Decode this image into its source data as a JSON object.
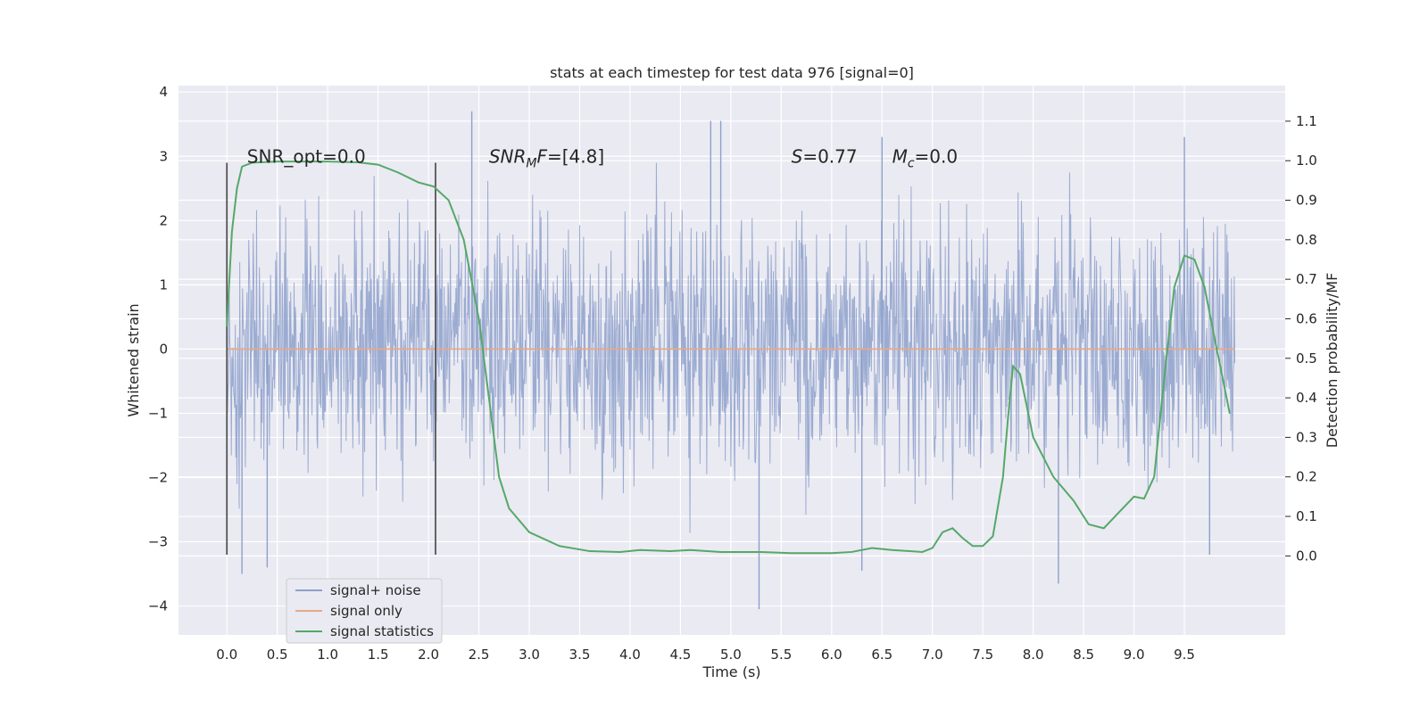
{
  "chart_data": {
    "type": "line",
    "title": "stats at each timestep for test data 976 [signal=0]",
    "xlabel": "Time (s)",
    "ylabel": "Whitened strain",
    "ylabel_right": "Detection probability/MF",
    "xlim": [
      -0.48,
      10.5
    ],
    "ylim": [
      -4.45,
      4.1
    ],
    "ylim_right": [
      -0.2,
      1.19
    ],
    "x_ticks": [
      0.0,
      0.5,
      1.0,
      1.5,
      2.0,
      2.5,
      3.0,
      3.5,
      4.0,
      4.5,
      5.0,
      5.5,
      6.0,
      6.5,
      7.0,
      7.5,
      8.0,
      8.5,
      9.0,
      9.5
    ],
    "x_tick_labels": [
      "0.0",
      "0.5",
      "1.0",
      "1.5",
      "2.0",
      "2.5",
      "3.0",
      "3.5",
      "4.0",
      "4.5",
      "5.0",
      "5.5",
      "6.0",
      "6.5",
      "7.0",
      "7.5",
      "8.0",
      "8.5",
      "9.0",
      "9.5"
    ],
    "y_ticks": [
      -4,
      -3,
      -2,
      -1,
      0,
      1,
      2,
      3,
      4
    ],
    "y_tick_labels": [
      "−4",
      "−3",
      "−2",
      "−1",
      "0",
      "1",
      "2",
      "3",
      "4"
    ],
    "y_right_ticks": [
      0.0,
      0.1,
      0.2,
      0.3,
      0.4,
      0.5,
      0.6,
      0.7,
      0.8,
      0.9,
      1.0,
      1.1
    ],
    "y_right_tick_labels": [
      "0.0",
      "0.1",
      "0.2",
      "0.3",
      "0.4",
      "0.5",
      "0.6",
      "0.7",
      "0.8",
      "0.9",
      "1.0",
      "1.1"
    ],
    "grid": true,
    "legend_position": "lower-left",
    "series": [
      {
        "name": "signal+ noise",
        "color": "#8da0cb",
        "x_range": [
          0.0,
          10.0
        ],
        "typical_envelope": [
          -2.3,
          2.4
        ],
        "extremes": [
          {
            "x": 0.15,
            "y": -3.5
          },
          {
            "x": 0.4,
            "y": -3.4
          },
          {
            "x": 2.43,
            "y": 3.7
          },
          {
            "x": 4.8,
            "y": 3.55
          },
          {
            "x": 4.9,
            "y": 3.55
          },
          {
            "x": 5.28,
            "y": -4.05
          },
          {
            "x": 6.3,
            "y": -3.45
          },
          {
            "x": 6.5,
            "y": 3.3
          },
          {
            "x": 8.25,
            "y": -3.65
          },
          {
            "x": 9.5,
            "y": 3.3
          },
          {
            "x": 9.75,
            "y": -3.2
          }
        ]
      },
      {
        "name": "signal only",
        "color": "#e5a98a",
        "points": [
          [
            0.0,
            0.0
          ],
          [
            10.0,
            0.0
          ]
        ]
      },
      {
        "name": "signal statistics",
        "axis": "right",
        "color": "#55a868",
        "points": [
          [
            0.0,
            0.58
          ],
          [
            0.05,
            0.82
          ],
          [
            0.1,
            0.93
          ],
          [
            0.15,
            0.985
          ],
          [
            0.25,
            0.995
          ],
          [
            0.5,
            0.998
          ],
          [
            1.0,
            0.998
          ],
          [
            1.3,
            0.996
          ],
          [
            1.5,
            0.99
          ],
          [
            1.7,
            0.97
          ],
          [
            1.9,
            0.945
          ],
          [
            2.05,
            0.935
          ],
          [
            2.2,
            0.9
          ],
          [
            2.35,
            0.8
          ],
          [
            2.5,
            0.6
          ],
          [
            2.6,
            0.4
          ],
          [
            2.7,
            0.2
          ],
          [
            2.8,
            0.12
          ],
          [
            3.0,
            0.06
          ],
          [
            3.3,
            0.025
          ],
          [
            3.6,
            0.012
          ],
          [
            3.9,
            0.01
          ],
          [
            4.1,
            0.015
          ],
          [
            4.4,
            0.012
          ],
          [
            4.6,
            0.015
          ],
          [
            4.9,
            0.01
          ],
          [
            5.3,
            0.01
          ],
          [
            5.6,
            0.007
          ],
          [
            6.0,
            0.007
          ],
          [
            6.2,
            0.01
          ],
          [
            6.4,
            0.02
          ],
          [
            6.6,
            0.015
          ],
          [
            6.9,
            0.01
          ],
          [
            7.0,
            0.02
          ],
          [
            7.1,
            0.06
          ],
          [
            7.2,
            0.07
          ],
          [
            7.3,
            0.045
          ],
          [
            7.4,
            0.025
          ],
          [
            7.5,
            0.025
          ],
          [
            7.6,
            0.05
          ],
          [
            7.7,
            0.2
          ],
          [
            7.75,
            0.35
          ],
          [
            7.8,
            0.48
          ],
          [
            7.87,
            0.46
          ],
          [
            8.0,
            0.3
          ],
          [
            8.2,
            0.2
          ],
          [
            8.4,
            0.14
          ],
          [
            8.55,
            0.08
          ],
          [
            8.7,
            0.07
          ],
          [
            8.85,
            0.11
          ],
          [
            9.0,
            0.15
          ],
          [
            9.1,
            0.145
          ],
          [
            9.2,
            0.2
          ],
          [
            9.3,
            0.45
          ],
          [
            9.4,
            0.68
          ],
          [
            9.5,
            0.76
          ],
          [
            9.6,
            0.75
          ],
          [
            9.7,
            0.68
          ],
          [
            9.8,
            0.55
          ],
          [
            9.95,
            0.36
          ]
        ]
      }
    ],
    "annotations": [
      {
        "text": "SNR_opt=0.0",
        "x": 0.2,
        "y": 3.0
      },
      {
        "text": "=[4.8]",
        "math_prefix": "SNR",
        "math_sub": "M",
        "math_after_sub": "F",
        "x": 2.6,
        "y": 3.0
      },
      {
        "text": "=0.77",
        "math_prefix": "S",
        "x": 5.6,
        "y": 3.0
      },
      {
        "text": "=0.0",
        "math_prefix": "M",
        "math_sub": "c",
        "x": 6.6,
        "y": 3.0
      }
    ],
    "markers": [
      {
        "x": 0.0,
        "y_range": [
          -3.2,
          2.9
        ]
      },
      {
        "x": 2.07,
        "y_range": [
          -3.2,
          2.9
        ]
      }
    ]
  }
}
